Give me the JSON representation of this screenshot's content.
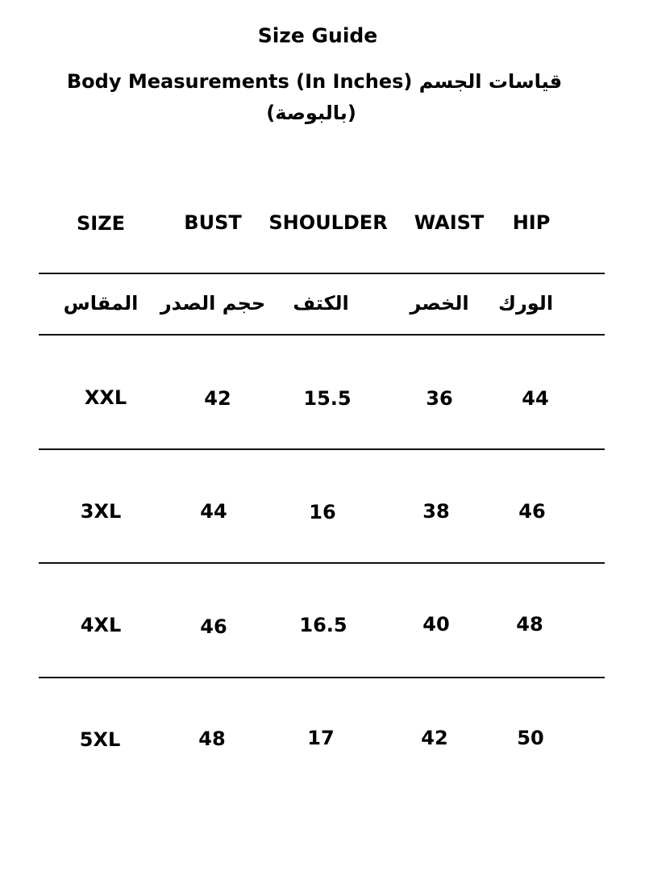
{
  "title": "Size Guide",
  "subtitle_line1": "Body Measurements (In Inches) قياسات الجسم",
  "subtitle_line2": "(بالبوصة)",
  "headers_en": [
    "SIZE",
    "BUST",
    "SHOULDER",
    "WAIST",
    "HIP"
  ],
  "headers_ar": [
    "المقاس",
    "حجم الصدر",
    "الكتف",
    "الخصر",
    "الورك"
  ],
  "rows": [
    [
      "XXL",
      "42",
      "15.5",
      "36",
      "44"
    ],
    [
      "3XL",
      "44",
      "16",
      "38",
      "46"
    ],
    [
      "4XL",
      "46",
      "16.5",
      "40",
      "48"
    ],
    [
      "5XL",
      "48",
      "17",
      "42",
      "50"
    ]
  ]
}
